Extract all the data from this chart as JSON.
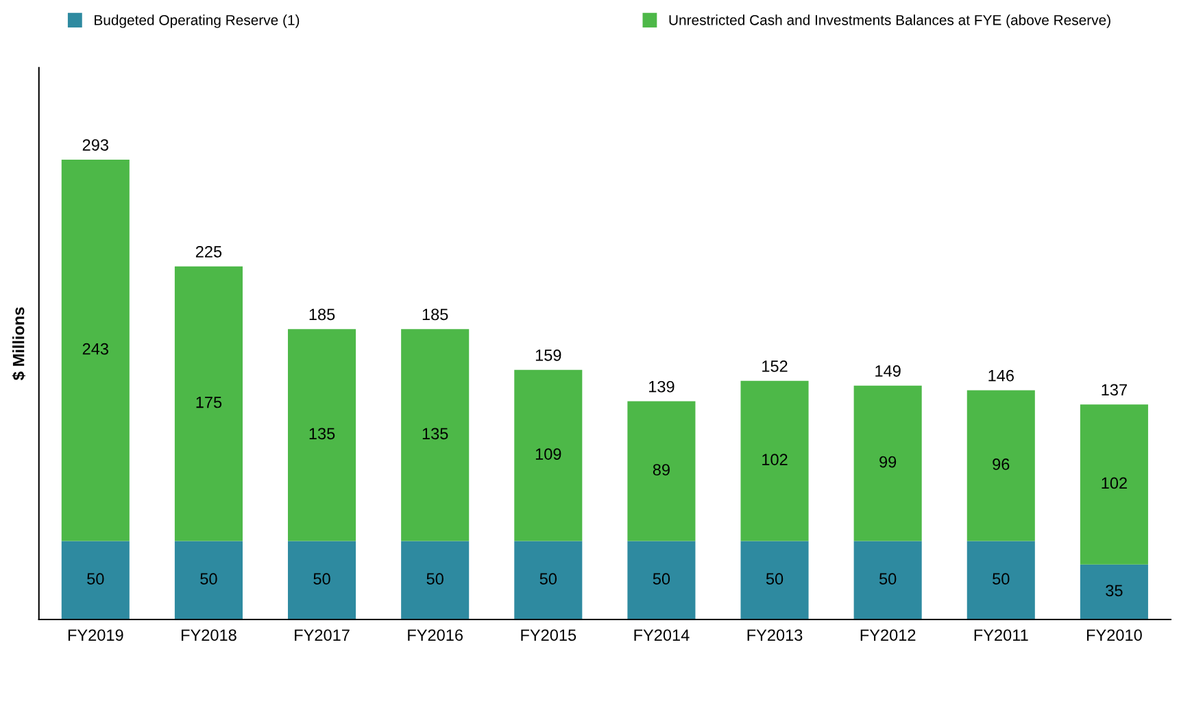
{
  "chart_data": {
    "type": "bar",
    "stacked": true,
    "ylabel": "$ Millions",
    "categories": [
      "FY2019",
      "FY2018",
      "FY2017",
      "FY2016",
      "FY2015",
      "FY2014",
      "FY2013",
      "FY2012",
      "FY2011",
      "FY2010"
    ],
    "series": [
      {
        "name": "Budgeted Operating Reserve (1)",
        "color": "#2e8aa0",
        "values": [
          50,
          50,
          50,
          50,
          50,
          50,
          50,
          50,
          50,
          35
        ]
      },
      {
        "name": "Unrestricted Cash and Investments Balances at FYE (above Reserve)",
        "color": "#4db848",
        "values": [
          243,
          175,
          135,
          135,
          109,
          89,
          102,
          99,
          96,
          102
        ]
      }
    ],
    "totals": [
      "293",
      "225",
      "185",
      "185",
      "159",
      "139",
      "152",
      "149",
      "146",
      "137"
    ],
    "data_labels": true,
    "legend": "top",
    "grid": false,
    "tick_labels": "x"
  }
}
